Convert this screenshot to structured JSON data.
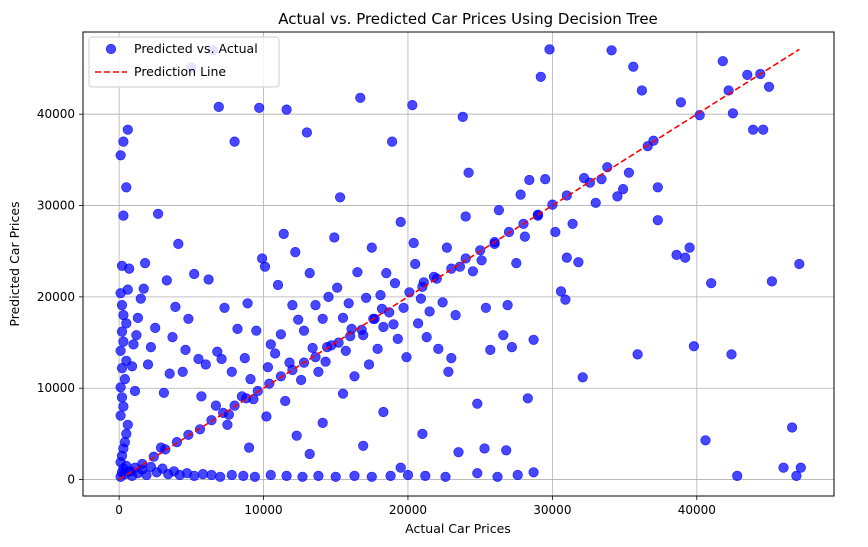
{
  "chart_data": {
    "type": "scatter",
    "title": "Actual vs. Predicted Car Prices Using Decision Tree",
    "xlabel": "Actual Car Prices",
    "ylabel": "Predicted Car Prices",
    "xlim": [
      -2500,
      49500
    ],
    "ylim": [
      -1800,
      49000
    ],
    "xticks": [
      0,
      10000,
      20000,
      30000,
      40000
    ],
    "yticks": [
      0,
      10000,
      20000,
      30000,
      40000
    ],
    "xtick_labels": [
      "0",
      "10000",
      "20000",
      "30000",
      "40000"
    ],
    "ytick_labels": [
      "0",
      "10000",
      "20000",
      "30000",
      "40000"
    ],
    "grid": true,
    "legend_position": "top-left",
    "series": [
      {
        "name": "Predicted vs. Actual",
        "kind": "scatter",
        "color": "#0000ff",
        "points": [
          [
            100,
            300
          ],
          [
            200,
            800
          ],
          [
            300,
            1200
          ],
          [
            400,
            600
          ],
          [
            500,
            1500
          ],
          [
            700,
            900
          ],
          [
            900,
            400
          ],
          [
            1100,
            1300
          ],
          [
            1300,
            700
          ],
          [
            1600,
            1100
          ],
          [
            1900,
            500
          ],
          [
            2200,
            1400
          ],
          [
            2600,
            800
          ],
          [
            3000,
            1200
          ],
          [
            3400,
            600
          ],
          [
            3800,
            900
          ],
          [
            4200,
            500
          ],
          [
            4700,
            700
          ],
          [
            5200,
            400
          ],
          [
            5800,
            600
          ],
          [
            6400,
            500
          ],
          [
            7000,
            300
          ],
          [
            7800,
            500
          ],
          [
            8600,
            400
          ],
          [
            9400,
            300
          ],
          [
            10500,
            500
          ],
          [
            11600,
            400
          ],
          [
            12700,
            300
          ],
          [
            13800,
            400
          ],
          [
            15000,
            300
          ],
          [
            16300,
            400
          ],
          [
            17500,
            300
          ],
          [
            18800,
            400
          ],
          [
            20000,
            500
          ],
          [
            21200,
            400
          ],
          [
            22600,
            300
          ],
          [
            24800,
            700
          ],
          [
            26200,
            300
          ],
          [
            27600,
            500
          ],
          [
            28700,
            800
          ],
          [
            100,
            1900
          ],
          [
            200,
            2600
          ],
          [
            300,
            3400
          ],
          [
            400,
            4100
          ],
          [
            500,
            5000
          ],
          [
            600,
            6000
          ],
          [
            100,
            7000
          ],
          [
            300,
            8000
          ],
          [
            200,
            9000
          ],
          [
            100,
            10100
          ],
          [
            400,
            11000
          ],
          [
            200,
            12200
          ],
          [
            500,
            13000
          ],
          [
            100,
            14100
          ],
          [
            300,
            15100
          ],
          [
            200,
            16200
          ],
          [
            500,
            17100
          ],
          [
            300,
            18000
          ],
          [
            200,
            19100
          ],
          [
            100,
            20400
          ],
          [
            600,
            20800
          ],
          [
            200,
            23400
          ],
          [
            700,
            23100
          ],
          [
            300,
            28900
          ],
          [
            500,
            32000
          ],
          [
            100,
            35500
          ],
          [
            300,
            37000
          ],
          [
            600,
            38300
          ],
          [
            900,
            12400
          ],
          [
            1000,
            14800
          ],
          [
            1100,
            9700
          ],
          [
            1200,
            15800
          ],
          [
            1300,
            17700
          ],
          [
            1500,
            19800
          ],
          [
            1700,
            20900
          ],
          [
            1800,
            23700
          ],
          [
            2000,
            12600
          ],
          [
            2200,
            14500
          ],
          [
            2500,
            16600
          ],
          [
            2700,
            29100
          ],
          [
            2900,
            3500
          ],
          [
            3100,
            9500
          ],
          [
            3300,
            21800
          ],
          [
            3500,
            11600
          ],
          [
            3700,
            15600
          ],
          [
            3900,
            18900
          ],
          [
            4100,
            25800
          ],
          [
            4400,
            11800
          ],
          [
            4600,
            14200
          ],
          [
            4800,
            17600
          ],
          [
            5000,
            45100
          ],
          [
            5200,
            22500
          ],
          [
            5500,
            13200
          ],
          [
            5700,
            9100
          ],
          [
            6000,
            12600
          ],
          [
            6200,
            21900
          ],
          [
            6500,
            47000
          ],
          [
            6700,
            8100
          ],
          [
            6900,
            40800
          ],
          [
            7100,
            13200
          ],
          [
            7300,
            18800
          ],
          [
            7600,
            7100
          ],
          [
            7800,
            11800
          ],
          [
            8000,
            37000
          ],
          [
            8200,
            16500
          ],
          [
            8500,
            9100
          ],
          [
            8700,
            13300
          ],
          [
            8900,
            19300
          ],
          [
            9100,
            11000
          ],
          [
            9300,
            8800
          ],
          [
            9500,
            16300
          ],
          [
            9700,
            40700
          ],
          [
            9900,
            24200
          ],
          [
            10100,
            23300
          ],
          [
            10300,
            12300
          ],
          [
            10500,
            14800
          ],
          [
            10800,
            13800
          ],
          [
            11000,
            21300
          ],
          [
            11200,
            15900
          ],
          [
            11400,
            26900
          ],
          [
            11600,
            40500
          ],
          [
            11800,
            12800
          ],
          [
            12000,
            19100
          ],
          [
            12200,
            24900
          ],
          [
            12400,
            17500
          ],
          [
            12600,
            10900
          ],
          [
            12800,
            16300
          ],
          [
            13000,
            38000
          ],
          [
            13200,
            22600
          ],
          [
            13400,
            14400
          ],
          [
            13600,
            19100
          ],
          [
            13800,
            11800
          ],
          [
            14100,
            17600
          ],
          [
            14300,
            12900
          ],
          [
            14500,
            20000
          ],
          [
            14700,
            14700
          ],
          [
            14900,
            26500
          ],
          [
            15100,
            21000
          ],
          [
            15300,
            30900
          ],
          [
            15500,
            17700
          ],
          [
            15700,
            14100
          ],
          [
            15900,
            19300
          ],
          [
            16100,
            16500
          ],
          [
            16300,
            11300
          ],
          [
            16500,
            22700
          ],
          [
            16700,
            41800
          ],
          [
            16900,
            15800
          ],
          [
            17100,
            19900
          ],
          [
            17300,
            12600
          ],
          [
            17500,
            25400
          ],
          [
            17700,
            17600
          ],
          [
            17900,
            14300
          ],
          [
            18100,
            20200
          ],
          [
            18300,
            16700
          ],
          [
            18500,
            22600
          ],
          [
            18700,
            18300
          ],
          [
            18900,
            37000
          ],
          [
            19100,
            21500
          ],
          [
            19300,
            15400
          ],
          [
            19500,
            28200
          ],
          [
            19700,
            18800
          ],
          [
            19900,
            13400
          ],
          [
            20100,
            20500
          ],
          [
            20300,
            41000
          ],
          [
            20500,
            23600
          ],
          [
            20700,
            17100
          ],
          [
            20900,
            19800
          ],
          [
            21100,
            21600
          ],
          [
            21300,
            15600
          ],
          [
            21500,
            18400
          ],
          [
            21800,
            22200
          ],
          [
            22100,
            14300
          ],
          [
            22400,
            19400
          ],
          [
            22700,
            25400
          ],
          [
            23000,
            13300
          ],
          [
            23300,
            18000
          ],
          [
            23600,
            23300
          ],
          [
            23800,
            39700
          ],
          [
            24000,
            28800
          ],
          [
            24200,
            33600
          ],
          [
            24500,
            22800
          ],
          [
            24800,
            8300
          ],
          [
            25100,
            24000
          ],
          [
            25400,
            18800
          ],
          [
            25700,
            14200
          ],
          [
            26000,
            25800
          ],
          [
            26300,
            29500
          ],
          [
            26600,
            15800
          ],
          [
            26900,
            19100
          ],
          [
            27200,
            14500
          ],
          [
            27500,
            23700
          ],
          [
            27800,
            31200
          ],
          [
            28100,
            26600
          ],
          [
            28400,
            32800
          ],
          [
            28700,
            15300
          ],
          [
            29000,
            29000
          ],
          [
            29200,
            44100
          ],
          [
            29500,
            32900
          ],
          [
            29800,
            47100
          ],
          [
            30200,
            27100
          ],
          [
            30600,
            20600
          ],
          [
            31000,
            24300
          ],
          [
            31400,
            28000
          ],
          [
            31800,
            23800
          ],
          [
            32200,
            33000
          ],
          [
            32600,
            32500
          ],
          [
            33000,
            30300
          ],
          [
            33400,
            32900
          ],
          [
            33800,
            34200
          ],
          [
            34100,
            47000
          ],
          [
            34500,
            31000
          ],
          [
            34900,
            31800
          ],
          [
            35300,
            33600
          ],
          [
            35600,
            45200
          ],
          [
            35900,
            13700
          ],
          [
            36200,
            42600
          ],
          [
            36600,
            36500
          ],
          [
            37000,
            37100
          ],
          [
            37300,
            32000
          ],
          [
            37300,
            28400
          ],
          [
            38600,
            24600
          ],
          [
            38900,
            41300
          ],
          [
            39200,
            24300
          ],
          [
            39500,
            25400
          ],
          [
            39800,
            14600
          ],
          [
            40200,
            39900
          ],
          [
            40600,
            4300
          ],
          [
            41000,
            21500
          ],
          [
            41800,
            45800
          ],
          [
            42200,
            42600
          ],
          [
            42500,
            40100
          ],
          [
            42400,
            13700
          ],
          [
            42800,
            400
          ],
          [
            43500,
            44300
          ],
          [
            43900,
            38300
          ],
          [
            44400,
            44400
          ],
          [
            44600,
            38300
          ],
          [
            45000,
            43000
          ],
          [
            45200,
            21700
          ],
          [
            46000,
            1300
          ],
          [
            46600,
            5700
          ],
          [
            46900,
            400
          ],
          [
            47100,
            23600
          ],
          [
            47200,
            1300
          ],
          [
            20400,
            25900
          ],
          [
            19000,
            17000
          ],
          [
            18200,
            18700
          ],
          [
            17600,
            17600
          ],
          [
            16800,
            16400
          ],
          [
            16000,
            15700
          ],
          [
            15200,
            15000
          ],
          [
            14400,
            14500
          ],
          [
            13600,
            13400
          ],
          [
            12800,
            12800
          ],
          [
            12000,
            12000
          ],
          [
            11200,
            11300
          ],
          [
            10400,
            10500
          ],
          [
            9600,
            9700
          ],
          [
            8800,
            8900
          ],
          [
            8000,
            8100
          ],
          [
            7200,
            7300
          ],
          [
            6400,
            6500
          ],
          [
            5600,
            5500
          ],
          [
            4800,
            4900
          ],
          [
            4000,
            4100
          ],
          [
            3200,
            3300
          ],
          [
            2400,
            2500
          ],
          [
            1600,
            1700
          ],
          [
            800,
            900
          ],
          [
            21000,
            21100
          ],
          [
            22000,
            22000
          ],
          [
            23000,
            23100
          ],
          [
            24000,
            24200
          ],
          [
            25000,
            25100
          ],
          [
            26000,
            26000
          ],
          [
            27000,
            27100
          ],
          [
            28000,
            28000
          ],
          [
            29000,
            28900
          ],
          [
            30000,
            30100
          ],
          [
            31000,
            31100
          ],
          [
            6800,
            14000
          ],
          [
            7500,
            6000
          ],
          [
            9000,
            3500
          ],
          [
            10200,
            6900
          ],
          [
            11500,
            8600
          ],
          [
            12300,
            4800
          ],
          [
            13200,
            2800
          ],
          [
            14100,
            6200
          ],
          [
            15500,
            9400
          ],
          [
            16900,
            3700
          ],
          [
            18300,
            7400
          ],
          [
            19500,
            1300
          ],
          [
            21000,
            5000
          ],
          [
            22800,
            11800
          ],
          [
            23500,
            3000
          ],
          [
            25300,
            3400
          ],
          [
            26800,
            3200
          ],
          [
            28300,
            8900
          ],
          [
            30900,
            19700
          ],
          [
            32100,
            11200
          ]
        ]
      },
      {
        "name": "Prediction Line",
        "kind": "line",
        "style": "dashed",
        "color": "#ff0000",
        "x": [
          0,
          47100
        ],
        "y": [
          0,
          47100
        ]
      }
    ]
  }
}
